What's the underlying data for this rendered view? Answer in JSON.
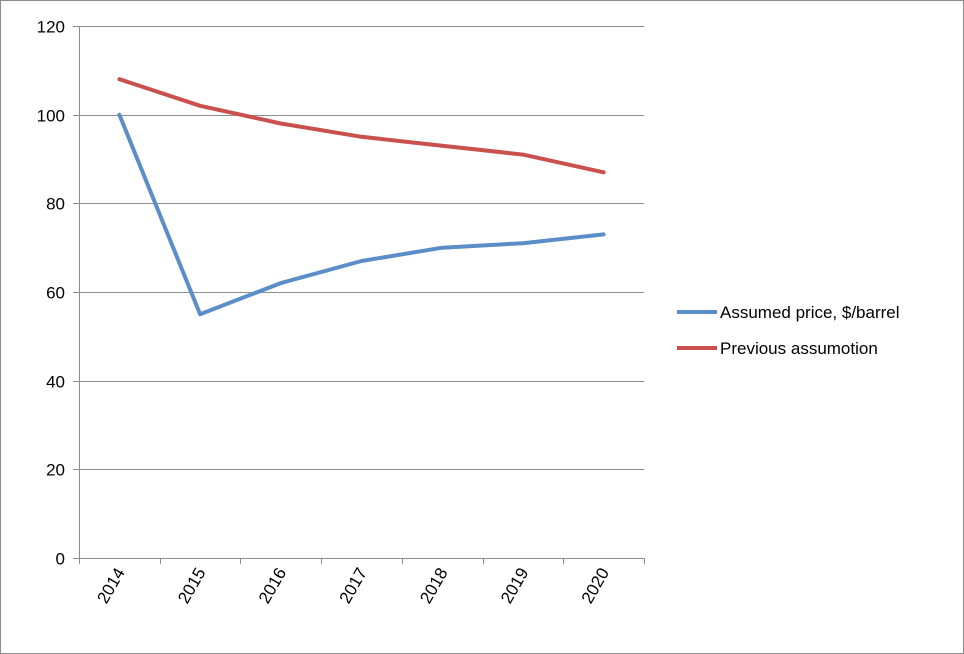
{
  "chart_data": {
    "type": "line",
    "title": "",
    "xlabel": "",
    "ylabel": "",
    "categories": [
      "2014",
      "2015",
      "2016",
      "2017",
      "2018",
      "2019",
      "2020"
    ],
    "ylim": [
      0,
      120
    ],
    "yticks": [
      0,
      20,
      40,
      60,
      80,
      100,
      120
    ],
    "grid": true,
    "legend_position": "right",
    "series": [
      {
        "name": "Assumed price, $/barrel",
        "color": "#5b8ec9",
        "values": [
          100,
          55,
          62,
          67,
          70,
          71,
          73
        ]
      },
      {
        "name": "Previous assumotion",
        "color": "#c9504d",
        "values": [
          108,
          102,
          98,
          95,
          93,
          91,
          87
        ]
      }
    ]
  }
}
